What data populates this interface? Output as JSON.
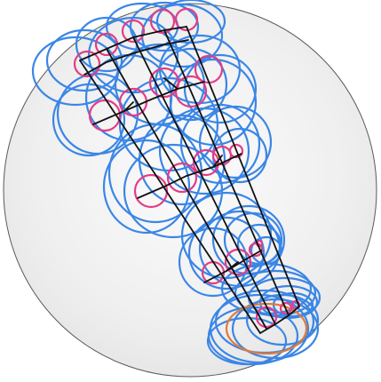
{
  "colors": {
    "sphere_fill": "#f2f2f2",
    "sphere_outline": "#5a5a5a",
    "blue_circles": "#3a86e6",
    "pink_circles": "#e23d86",
    "orange_circle": "#e07a3a",
    "black_edges": "#111111"
  }
}
